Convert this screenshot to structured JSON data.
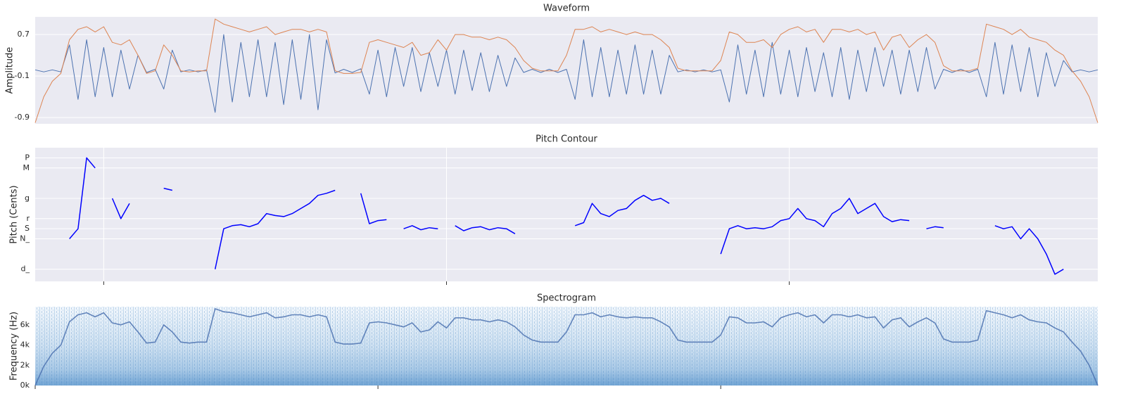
{
  "chart_data": [
    {
      "type": "line",
      "title": "Waveform",
      "y_label": "Amplitude",
      "xlim": [
        0,
        15.5
      ],
      "ylim": [
        -1.02,
        1.04
      ],
      "yticks": [
        -0.9,
        -0.1,
        0.7
      ],
      "grid": true,
      "series": [
        {
          "color": "#4c72b0",
          "values": [
            0.02,
            -0.02,
            0.02,
            -0.02,
            0.5,
            -0.55,
            0.6,
            -0.5,
            0.45,
            -0.5,
            0.4,
            -0.35,
            0.3,
            -0.03,
            0.03,
            -0.35,
            0.4,
            -0.02,
            0.02,
            -0.02,
            0.02,
            -0.8,
            0.7,
            -0.6,
            0.55,
            -0.5,
            0.6,
            -0.5,
            0.55,
            -0.65,
            0.6,
            -0.55,
            0.7,
            -0.75,
            0.6,
            -0.04,
            0.03,
            -0.03,
            0.04,
            -0.45,
            0.4,
            -0.5,
            0.45,
            -0.3,
            0.45,
            -0.4,
            0.35,
            -0.3,
            0.4,
            -0.45,
            0.4,
            -0.38,
            0.35,
            -0.4,
            0.3,
            -0.3,
            0.25,
            -0.03,
            0.03,
            -0.03,
            0.03,
            -0.03,
            0.03,
            -0.55,
            0.6,
            -0.5,
            0.45,
            -0.5,
            0.4,
            -0.45,
            0.5,
            -0.45,
            0.4,
            -0.45,
            0.3,
            -0.02,
            0.02,
            -0.02,
            0.02,
            -0.02,
            0.02,
            -0.6,
            0.5,
            -0.45,
            0.4,
            -0.5,
            0.55,
            -0.45,
            0.4,
            -0.5,
            0.45,
            -0.4,
            0.35,
            -0.5,
            0.45,
            -0.55,
            0.4,
            -0.4,
            0.45,
            -0.3,
            0.4,
            -0.45,
            0.4,
            -0.4,
            0.45,
            -0.35,
            0.03,
            -0.03,
            0.03,
            -0.03,
            0.03,
            -0.5,
            0.55,
            -0.45,
            0.5,
            -0.4,
            0.45,
            -0.5,
            0.35,
            -0.3,
            0.2,
            -0.02,
            0.02,
            -0.02,
            0.02
          ]
        },
        {
          "color": "#dd8452",
          "values": [
            -1.0,
            -0.5,
            -0.2,
            -0.05,
            0.6,
            0.8,
            0.85,
            0.75,
            0.85,
            0.55,
            0.5,
            0.6,
            0.3,
            -0.05,
            0.0,
            0.5,
            0.3,
            0.0,
            -0.02,
            0.0,
            0.0,
            1.0,
            0.9,
            0.85,
            0.8,
            0.75,
            0.8,
            0.85,
            0.7,
            0.75,
            0.8,
            0.8,
            0.75,
            0.8,
            0.75,
            0.0,
            -0.05,
            -0.05,
            -0.03,
            0.55,
            0.6,
            0.55,
            0.5,
            0.45,
            0.55,
            0.3,
            0.35,
            0.6,
            0.4,
            0.7,
            0.7,
            0.65,
            0.65,
            0.6,
            0.65,
            0.6,
            0.45,
            0.2,
            0.05,
            0.0,
            0.0,
            0.0,
            0.3,
            0.8,
            0.8,
            0.85,
            0.75,
            0.8,
            0.75,
            0.7,
            0.75,
            0.7,
            0.7,
            0.6,
            0.45,
            0.05,
            0.0,
            0.0,
            0.0,
            0.0,
            0.2,
            0.75,
            0.7,
            0.55,
            0.55,
            0.6,
            0.45,
            0.7,
            0.8,
            0.85,
            0.75,
            0.8,
            0.55,
            0.8,
            0.8,
            0.75,
            0.8,
            0.7,
            0.75,
            0.4,
            0.65,
            0.7,
            0.45,
            0.6,
            0.7,
            0.55,
            0.1,
            0.0,
            0.0,
            0.0,
            0.05,
            0.9,
            0.85,
            0.8,
            0.7,
            0.8,
            0.65,
            0.6,
            0.55,
            0.4,
            0.3,
            0.0,
            -0.2,
            -0.5,
            -1.0
          ]
        }
      ]
    },
    {
      "type": "line",
      "title": "Pitch Contour",
      "y_label": "Pitch (Cents)",
      "xlim": [
        0,
        15.5
      ],
      "xticks": [
        1,
        6,
        11
      ],
      "ylim": [
        -520,
        800
      ],
      "grid": true,
      "yticks": [
        {
          "value": -400,
          "label": "d_"
        },
        {
          "value": -100,
          "label": "N_"
        },
        {
          "value": 0,
          "label": "S"
        },
        {
          "value": 100,
          "label": "r"
        },
        {
          "value": 300,
          "label": "g"
        },
        {
          "value": 600,
          "label": "M"
        },
        {
          "value": 700,
          "label": "P"
        }
      ],
      "series": [
        {
          "color": "#0000ff",
          "values": [
            null,
            null,
            null,
            null,
            -100,
            0,
            700,
            600,
            null,
            300,
            100,
            250,
            null,
            null,
            null,
            400,
            380,
            null,
            null,
            null,
            null,
            -400,
            0,
            30,
            40,
            20,
            50,
            150,
            130,
            120,
            150,
            200,
            250,
            330,
            350,
            380,
            null,
            null,
            350,
            50,
            80,
            90,
            null,
            0,
            30,
            -10,
            10,
            0,
            null,
            30,
            -20,
            10,
            20,
            -10,
            10,
            0,
            -50,
            null,
            null,
            null,
            null,
            null,
            null,
            30,
            60,
            250,
            150,
            120,
            180,
            200,
            280,
            330,
            280,
            300,
            250,
            null,
            null,
            null,
            null,
            null,
            -250,
            0,
            30,
            0,
            10,
            0,
            20,
            80,
            100,
            200,
            100,
            80,
            20,
            150,
            200,
            300,
            150,
            200,
            250,
            120,
            70,
            90,
            80,
            null,
            0,
            20,
            10,
            null,
            null,
            null,
            null,
            null,
            30,
            0,
            20,
            -100,
            0,
            -100,
            -250,
            -450,
            -400,
            null,
            null,
            null,
            null
          ]
        }
      ]
    },
    {
      "type": "spectrogram",
      "title": "Spectrogram",
      "y_label": "Frequency (Hz)",
      "xlim": [
        0,
        15.5
      ],
      "xticks": [
        0,
        5,
        10
      ],
      "ylim": [
        0,
        7800
      ],
      "grid": false,
      "yticks": [
        {
          "value": 0,
          "label": "0k"
        },
        {
          "value": 2000,
          "label": "2k"
        },
        {
          "value": 4000,
          "label": "4k"
        },
        {
          "value": 6000,
          "label": "6k"
        }
      ],
      "series": [
        {
          "color": "#4c72b0",
          "values": [
            0,
            1900,
            3200,
            4000,
            6300,
            7000,
            7200,
            6800,
            7200,
            6200,
            6000,
            6300,
            5300,
            4200,
            4300,
            6000,
            5300,
            4300,
            4200,
            4300,
            4300,
            7600,
            7300,
            7200,
            7000,
            6800,
            7000,
            7200,
            6700,
            6800,
            7000,
            7000,
            6800,
            7000,
            6800,
            4300,
            4100,
            4100,
            4200,
            6200,
            6300,
            6200,
            6000,
            5800,
            6200,
            5300,
            5500,
            6300,
            5700,
            6700,
            6700,
            6500,
            6500,
            6300,
            6500,
            6300,
            5800,
            5000,
            4500,
            4300,
            4300,
            4300,
            5300,
            7000,
            7000,
            7200,
            6800,
            7000,
            6800,
            6700,
            6800,
            6700,
            6700,
            6300,
            5800,
            4500,
            4300,
            4300,
            4300,
            4300,
            5000,
            6800,
            6700,
            6200,
            6200,
            6300,
            5800,
            6700,
            7000,
            7200,
            6800,
            7000,
            6200,
            7000,
            7000,
            6800,
            7000,
            6700,
            6800,
            5700,
            6500,
            6700,
            5800,
            6300,
            6700,
            6200,
            4600,
            4300,
            4300,
            4300,
            4500,
            7400,
            7200,
            7000,
            6700,
            7000,
            6500,
            6300,
            6200,
            5700,
            5300,
            4300,
            3400,
            2000,
            0
          ]
        }
      ]
    }
  ]
}
